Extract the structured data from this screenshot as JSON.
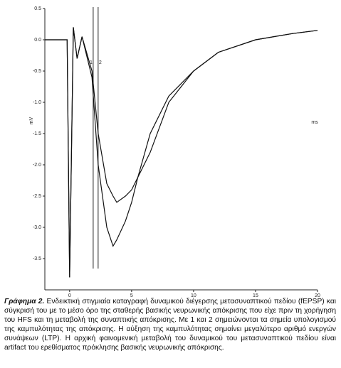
{
  "chart_data": {
    "type": "line",
    "xlabel": "ms",
    "ylabel": "mV",
    "x": [
      -2,
      -1,
      -0.2,
      0,
      0.3,
      0.6,
      1.0,
      1.8,
      2.3,
      3.0,
      3.5,
      3.8,
      4.5,
      5.0,
      5.5,
      6.5,
      8,
      10,
      12,
      15,
      18,
      20
    ],
    "series": [
      {
        "color": "#111111",
        "values": [
          0,
          0,
          0,
          -3.8,
          0.2,
          -0.3,
          0.05,
          -0.5,
          -1.5,
          -2.3,
          -2.5,
          -2.6,
          -2.5,
          -2.4,
          -2.2,
          -1.8,
          -1.0,
          -0.5,
          -0.2,
          0,
          0.1,
          0.15
        ]
      },
      {
        "color": "#111111",
        "values": [
          0,
          0,
          0,
          -3.8,
          0.2,
          -0.3,
          0.05,
          -0.6,
          -2.0,
          -3.0,
          -3.3,
          -3.2,
          -2.9,
          -2.6,
          -2.2,
          -1.5,
          -0.9,
          -0.5,
          -0.2,
          0,
          0.1,
          0.15
        ]
      }
    ],
    "markers": [
      {
        "x": 1.9,
        "label": "1"
      },
      {
        "x": 2.3,
        "label": "2"
      }
    ],
    "xlim": [
      -2,
      20
    ],
    "xticks": [
      0,
      5,
      10,
      15,
      20
    ],
    "ylim": [
      -4,
      0.5
    ],
    "yticks": [
      0.5,
      {
        "value": 0,
        "label": "0.0"
      },
      -0.5,
      {
        "value": -1,
        "label": "-1.0"
      },
      -1.5,
      {
        "value": -2,
        "label": "-2.0"
      },
      -2.5,
      {
        "value": -3,
        "label": "-3.0"
      },
      -3.5
    ],
    "grid": false
  },
  "caption": {
    "label": "Γράφημα 2.",
    "text": "Ενδεικτική στιγμιαία καταγραφή δυναμικού διέγερσης μετασυναπτικού πεδίου (fEPSP) και σύγκρισή του με το μέσο όρο της σταθερής βασικής νευρωνικής απόκρισης που είχε πριν τη χορήγηση του HFS και τη μεταβολή της συναπτικής απόκρισης. Με 1 και 2 σημειώνονται τα σημεία υπολογισμού της καμπυλότητας της απόκρισης. Η αύξηση της καμπυλότητας σημαίνει μεγαλύτερο αριθμό ενεργών συνάψεων (LTP). Η αρχική φαινομενική μεταβολή του δυναμικού του μετασυναπτικού πεδίου είναι artifact του ερεθίσματος πρόκλησης βασικής νευρωνικής απόκρισης."
  }
}
